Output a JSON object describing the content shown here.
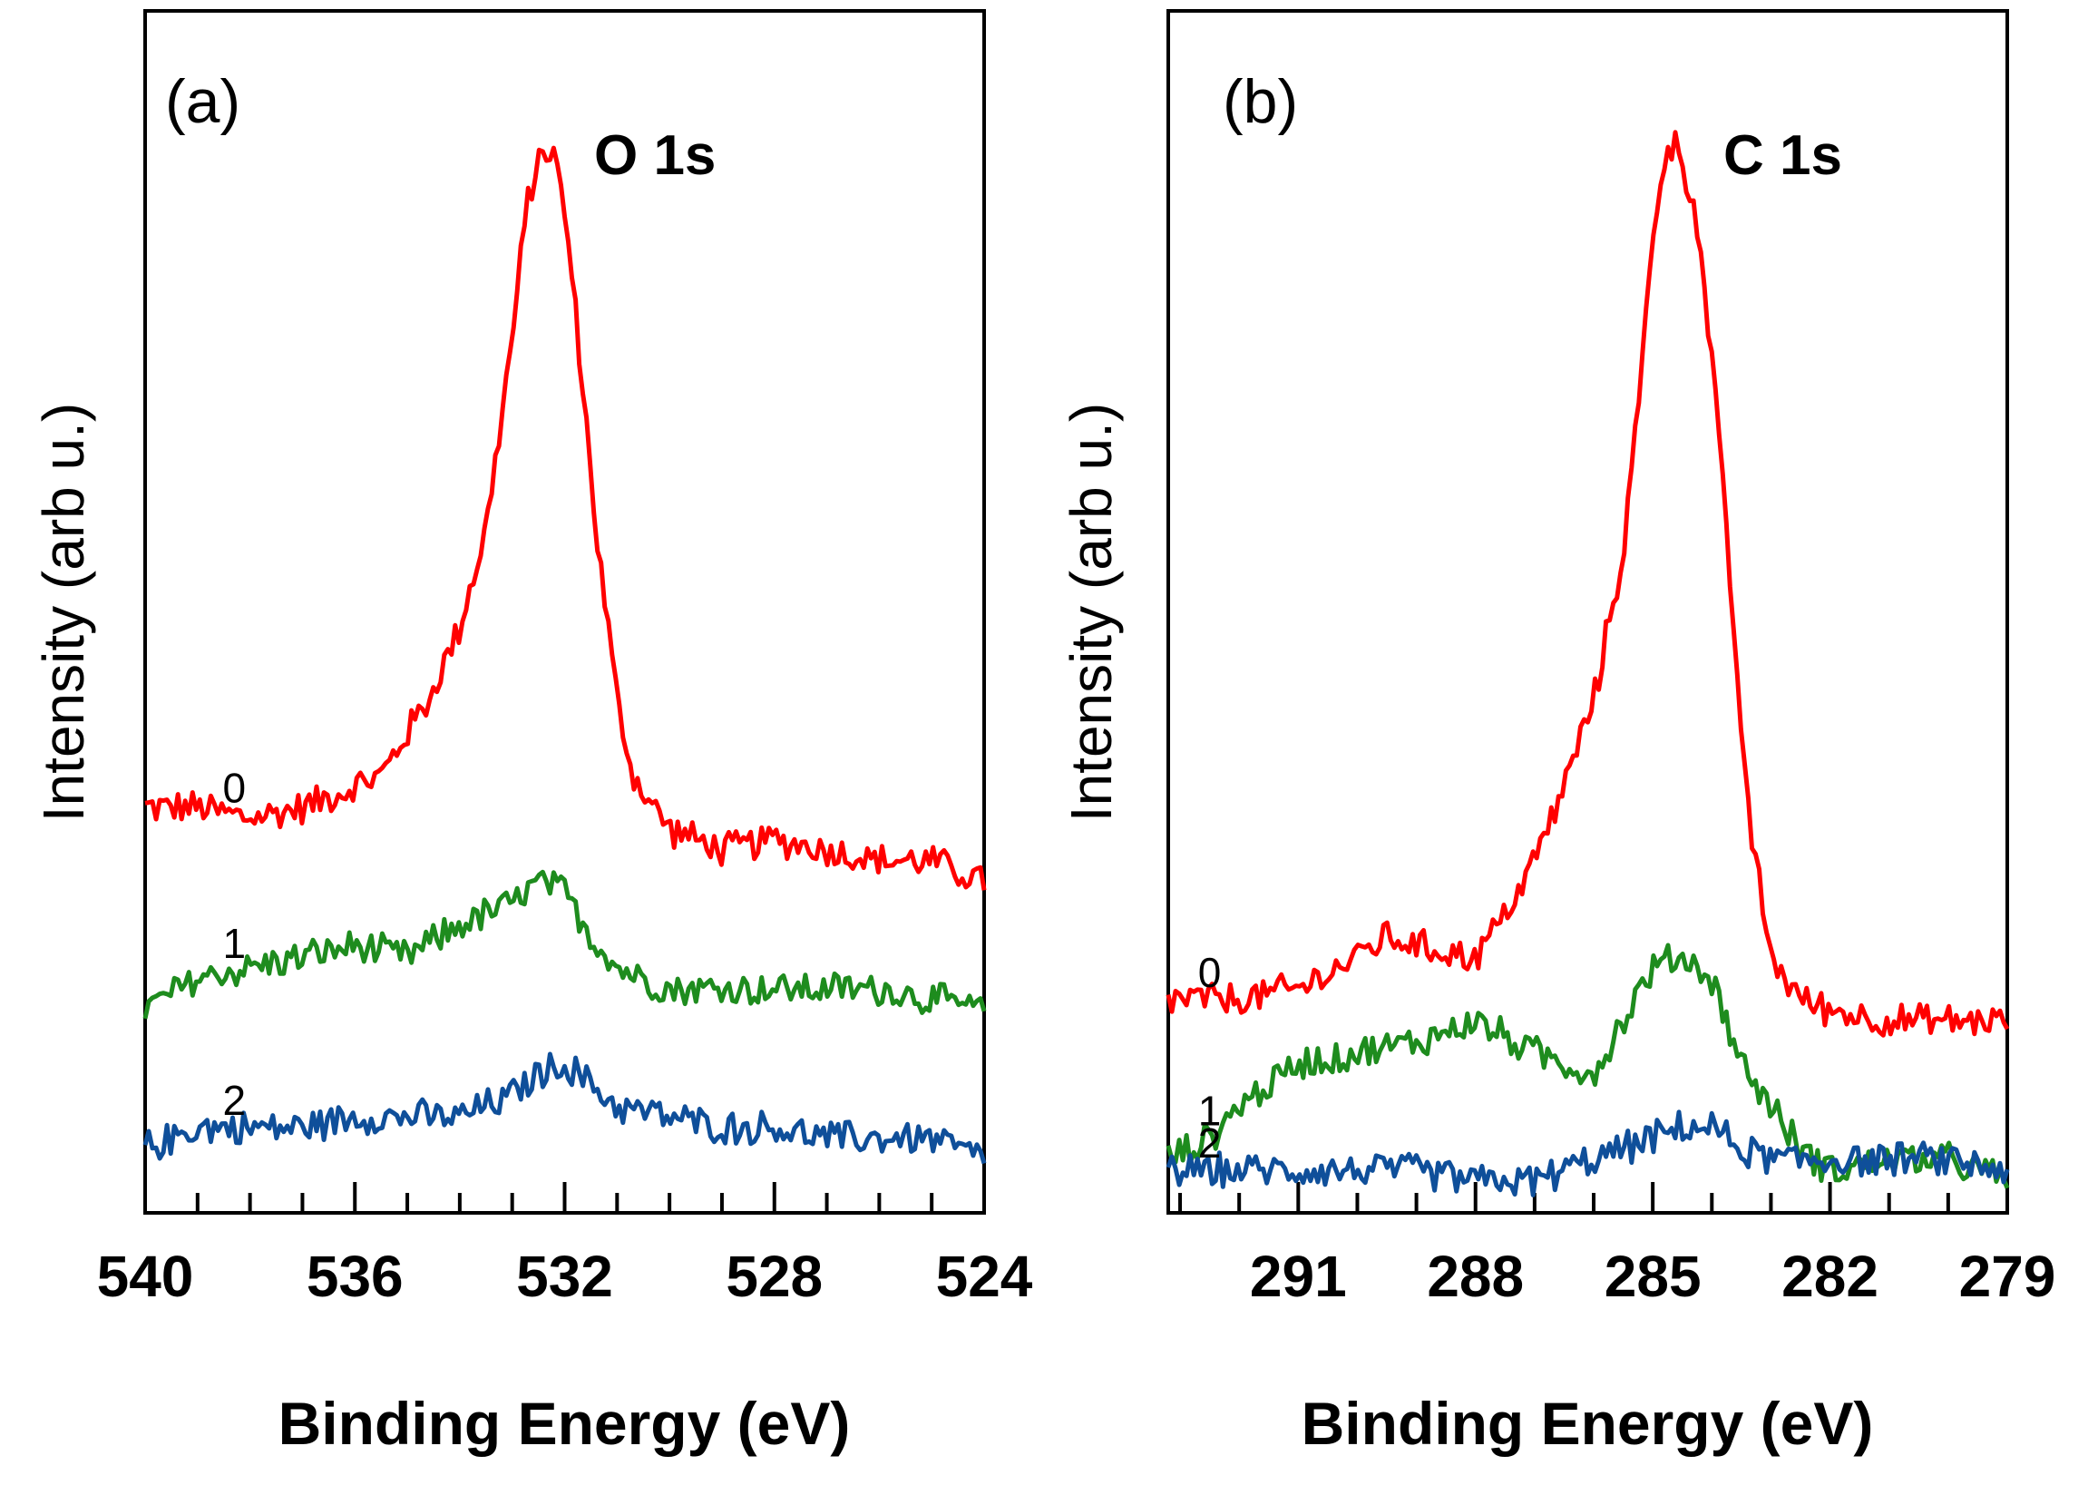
{
  "chart_data": [
    {
      "type": "line",
      "panel_label": "(a)",
      "title": "O 1s",
      "xlabel": "Binding Energy (eV)",
      "ylabel": "Intensity (arb u.)",
      "x_range": [
        540,
        524
      ],
      "x_reversed": true,
      "xticks": [
        540,
        536,
        532,
        528,
        524
      ],
      "xtick_labels": [
        "540",
        "536",
        "532",
        "528",
        "524"
      ],
      "minor_tick_step": 1,
      "y_range": [
        0,
        1.05
      ],
      "y_tick_labels": false,
      "noise_amplitude": 0.011,
      "series": [
        {
          "name": "0",
          "color": "#ff0000",
          "label_at": 538.3,
          "x": [
            540,
            539,
            538,
            537,
            536,
            535.5,
            535,
            534.5,
            534,
            533.5,
            533,
            532.7,
            532.4,
            532.2,
            532,
            531.7,
            531.4,
            531,
            530.7,
            530.3,
            530,
            529,
            528,
            527,
            526,
            525,
            524
          ],
          "y": [
            0.38,
            0.38,
            0.37,
            0.38,
            0.4,
            0.41,
            0.45,
            0.49,
            0.55,
            0.64,
            0.82,
            0.95,
            1.0,
            0.99,
            0.94,
            0.8,
            0.64,
            0.48,
            0.41,
            0.38,
            0.36,
            0.34,
            0.35,
            0.34,
            0.33,
            0.33,
            0.31
          ]
        },
        {
          "name": "1",
          "color": "#1e8c1e",
          "label_at": 538.3,
          "x": [
            540,
            539,
            538,
            537,
            536,
            535,
            534,
            533,
            532.5,
            532,
            531.5,
            531,
            530.5,
            530,
            529,
            528,
            527,
            526,
            525,
            524
          ],
          "y": [
            0.19,
            0.22,
            0.23,
            0.24,
            0.25,
            0.24,
            0.27,
            0.29,
            0.31,
            0.3,
            0.26,
            0.23,
            0.22,
            0.21,
            0.21,
            0.21,
            0.21,
            0.21,
            0.2,
            0.19
          ]
        },
        {
          "name": "2",
          "color": "#0f4f9a",
          "label_at": 538.3,
          "x": [
            540,
            539,
            538,
            537,
            536,
            535,
            534,
            533,
            532.5,
            532,
            531.5,
            531,
            530,
            529,
            528,
            527,
            526,
            525,
            524
          ],
          "y": [
            0.06,
            0.08,
            0.08,
            0.08,
            0.09,
            0.09,
            0.09,
            0.11,
            0.13,
            0.14,
            0.12,
            0.1,
            0.09,
            0.08,
            0.08,
            0.07,
            0.07,
            0.07,
            0.05
          ]
        }
      ]
    },
    {
      "type": "line",
      "panel_label": "(b)",
      "title": "C 1s",
      "xlabel": "Binding Energy (eV)",
      "ylabel": "Intensity (arb u.)",
      "x_range": [
        293.2,
        279
      ],
      "x_reversed": true,
      "xticks": [
        291,
        288,
        285,
        282,
        279
      ],
      "xtick_labels": [
        "291",
        "288",
        "285",
        "282",
        "279"
      ],
      "minor_tick_step": 1,
      "y_range": [
        0,
        1.05
      ],
      "y_tick_labels": false,
      "noise_amplitude": 0.011,
      "series": [
        {
          "name": "0",
          "color": "#ff0000",
          "label_at": 292.5,
          "x": [
            293.2,
            292,
            291,
            290,
            289.5,
            289,
            288,
            287.5,
            287,
            286.5,
            286,
            285.5,
            285.2,
            285,
            284.8,
            284.6,
            284.3,
            284,
            283.7,
            283.4,
            283,
            282.5,
            282,
            281,
            280,
            279
          ],
          "y": [
            0.2,
            0.2,
            0.21,
            0.24,
            0.26,
            0.25,
            0.24,
            0.28,
            0.33,
            0.4,
            0.48,
            0.62,
            0.78,
            0.92,
            0.99,
            1.0,
            0.95,
            0.8,
            0.6,
            0.38,
            0.24,
            0.2,
            0.19,
            0.18,
            0.18,
            0.18
          ]
        },
        {
          "name": "1",
          "color": "#1e8c1e",
          "label_at": 292.5,
          "x": [
            293.2,
            292.5,
            292,
            291,
            290,
            289,
            288,
            287,
            286,
            285.5,
            285,
            284.5,
            284,
            283.5,
            283,
            282.5,
            282,
            281,
            280,
            279
          ],
          "y": [
            0.05,
            0.07,
            0.1,
            0.14,
            0.15,
            0.16,
            0.18,
            0.15,
            0.13,
            0.18,
            0.23,
            0.24,
            0.22,
            0.14,
            0.1,
            0.06,
            0.04,
            0.05,
            0.05,
            0.03
          ]
        },
        {
          "name": "2",
          "color": "#0f4f9a",
          "label_at": 292.5,
          "x": [
            293.2,
            292,
            291,
            290,
            289,
            288,
            287,
            286,
            285,
            284.5,
            284,
            283.5,
            283,
            282,
            281,
            280,
            279
          ],
          "y": [
            0.04,
            0.04,
            0.04,
            0.04,
            0.04,
            0.03,
            0.03,
            0.05,
            0.07,
            0.08,
            0.08,
            0.06,
            0.05,
            0.05,
            0.05,
            0.05,
            0.04
          ]
        }
      ]
    }
  ]
}
